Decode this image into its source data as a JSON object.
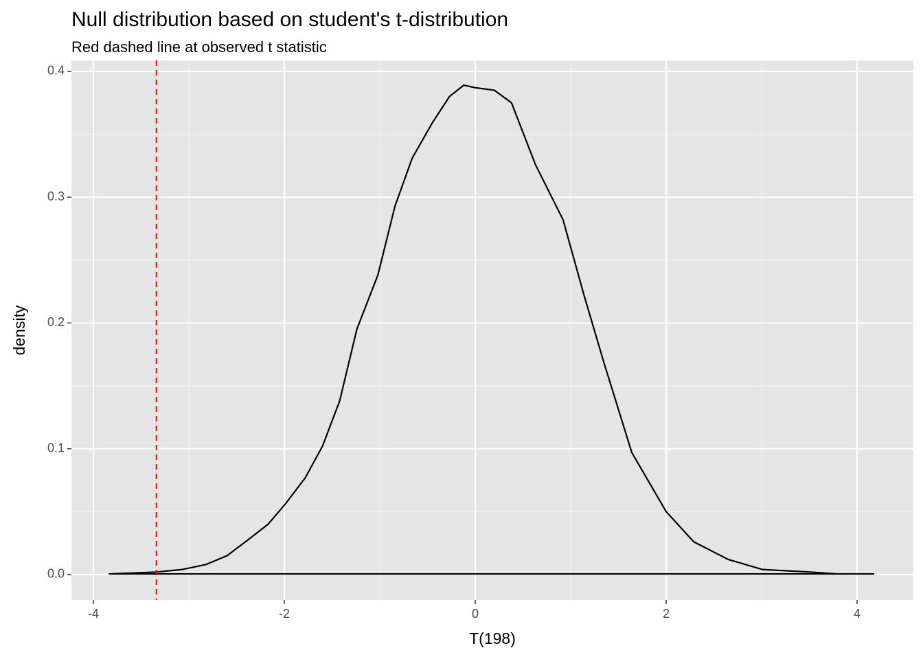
{
  "chart_data": {
    "type": "line",
    "title": "Null distribution based on student's t-distribution",
    "subtitle": "Red dashed line at observed t statistic",
    "x_label": "T(198)",
    "y_label": "density",
    "x": [
      -3.84,
      -3.34,
      -3.07,
      -2.82,
      -2.6,
      -2.39,
      -2.17,
      -1.99,
      -1.78,
      -1.6,
      -1.42,
      -1.24,
      -1.02,
      -0.84,
      -0.66,
      -0.45,
      -0.27,
      -0.12,
      0,
      0.2,
      0.38,
      0.63,
      0.92,
      1.14,
      1.35,
      1.64,
      2.0,
      2.29,
      2.65,
      3.01,
      3.51,
      3.8,
      4.18
    ],
    "series": [
      {
        "color": "#000000",
        "values": [
          0.0005,
          0.002,
          0.004,
          0.008,
          0.015,
          0.027,
          0.04,
          0.056,
          0.077,
          0.102,
          0.138,
          0.195,
          0.238,
          0.293,
          0.331,
          0.359,
          0.38,
          0.389,
          0.387,
          0.385,
          0.375,
          0.326,
          0.282,
          0.222,
          0.168,
          0.097,
          0.05,
          0.026,
          0.012,
          0.004,
          0.002,
          0.0005,
          0.0005
        ]
      }
    ],
    "vline": {
      "x": -3.34,
      "color": "#ff0000"
    },
    "xlim": [
      -4.23,
      4.59
    ],
    "xticks": [
      -4,
      -2,
      0,
      2,
      4
    ],
    "ylim": [
      -0.0202,
      0.4087
    ],
    "yticks": [
      {
        "value": 0,
        "label": "0.0"
      },
      0.1,
      0.2,
      0.3,
      0.4
    ],
    "grid": true
  }
}
